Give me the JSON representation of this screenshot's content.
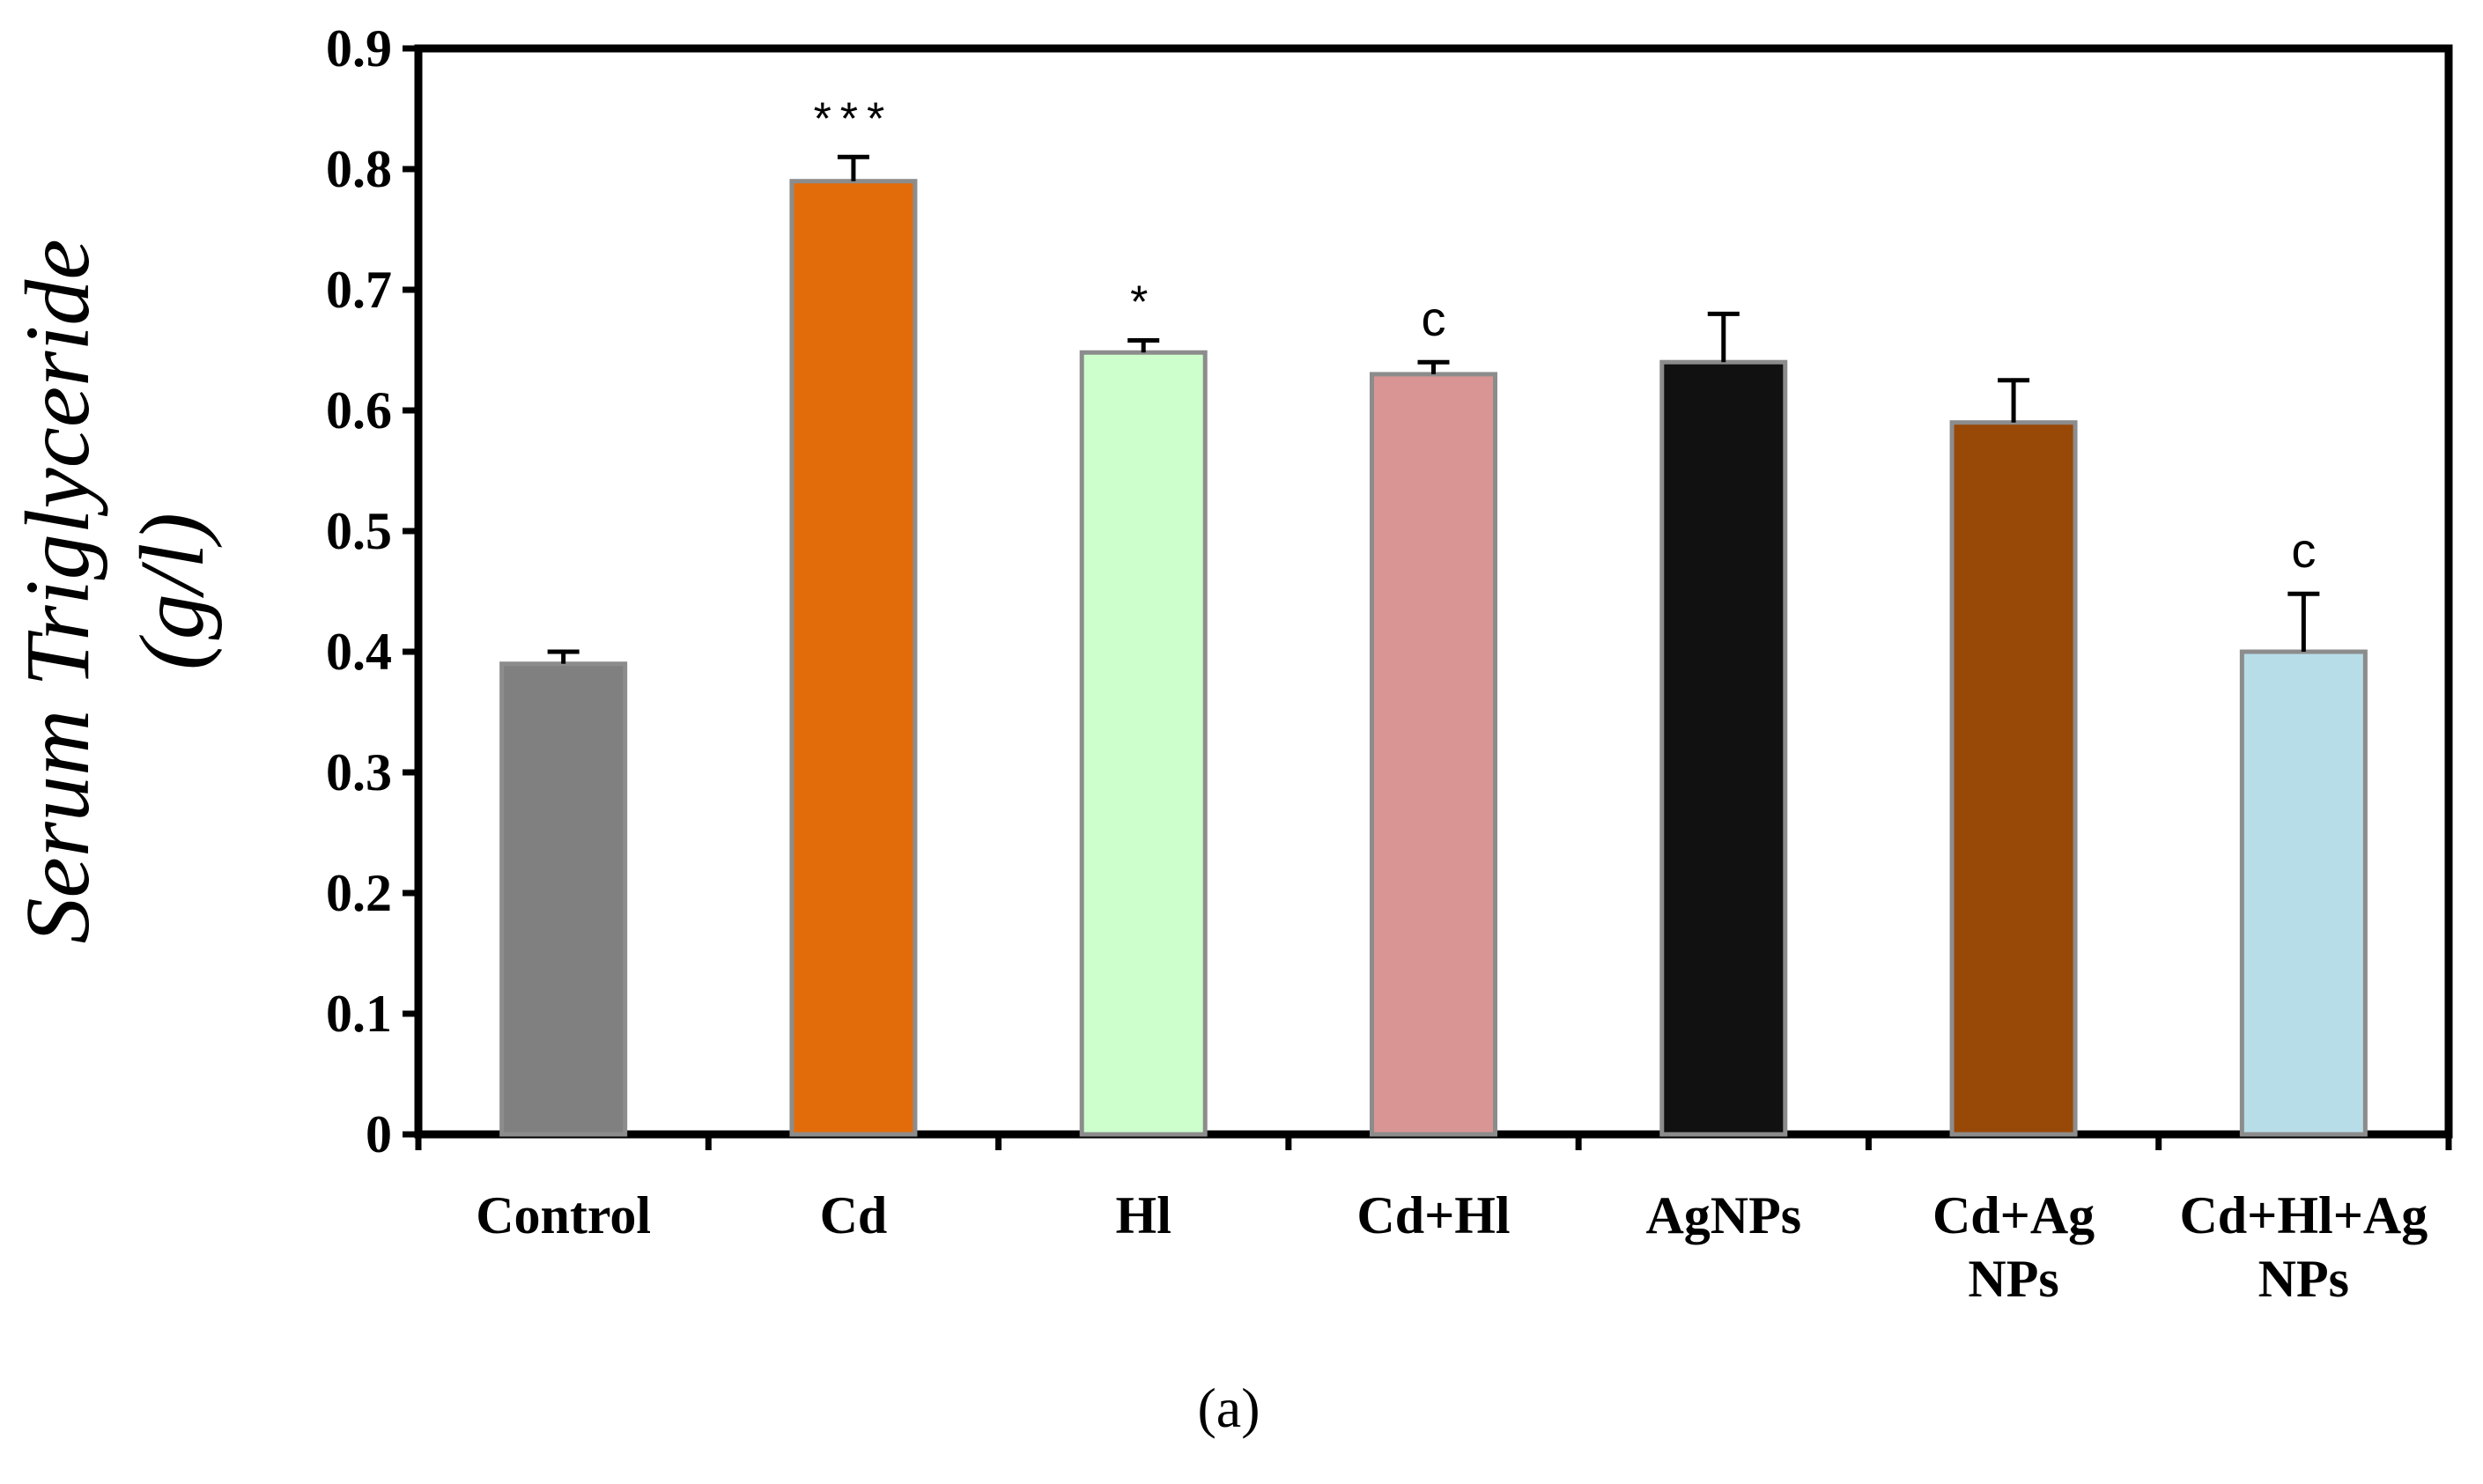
{
  "chart_data": {
    "type": "bar",
    "title": "",
    "xlabel": "",
    "ylabel": "Serum Triglyceride (g/l)",
    "ylabel_lines": [
      "Serum Triglyceride",
      "(g/l)"
    ],
    "ylim": [
      0,
      0.9
    ],
    "yticks": [
      0,
      0.1,
      0.2,
      0.3,
      0.4,
      0.5,
      0.6,
      0.7,
      0.8,
      0.9
    ],
    "ytick_labels": [
      "0",
      "0.1",
      "0.2",
      "0.3",
      "0.4",
      "0.5",
      "0.6",
      "0.7",
      "0.8",
      "0.9"
    ],
    "grid": false,
    "categories": [
      "Control",
      "Cd",
      "Hl",
      "Cd+Hl",
      "AgNPs",
      "Cd+Ag NPs",
      "Cd+Hl+Ag NPs"
    ],
    "category_label_lines": [
      [
        "Control"
      ],
      [
        "Cd"
      ],
      [
        "Hl"
      ],
      [
        "Cd+Hl"
      ],
      [
        "AgNPs"
      ],
      [
        "Cd+Ag",
        "NPs"
      ],
      [
        "Cd+Hl+Ag",
        "NPs"
      ]
    ],
    "values": [
      0.39,
      0.79,
      0.648,
      0.63,
      0.64,
      0.59,
      0.4
    ],
    "errors": [
      0.01,
      0.02,
      0.01,
      0.01,
      0.04,
      0.035,
      0.048
    ],
    "significance": [
      "",
      "***",
      "*",
      "c",
      "",
      "",
      "c"
    ],
    "colors": [
      "#808080",
      "#E36C0A",
      "#CCFFCC",
      "#D99594",
      "#111111",
      "#984807",
      "#B7DDE8"
    ],
    "bar_edge_color": "#8C8C8C",
    "panel_label": "(a)"
  }
}
